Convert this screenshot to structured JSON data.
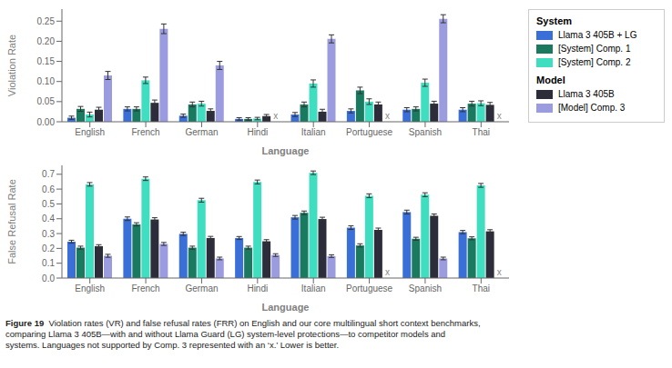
{
  "chart_data": [
    {
      "type": "bar",
      "categories": [
        "English",
        "French",
        "German",
        "Hindi",
        "Italian",
        "Portuguese",
        "Spanish",
        "Thai"
      ],
      "series": [
        {
          "name": "Llama 3 405B + LG",
          "color": "#3A6FD8",
          "values": [
            0.01,
            0.032,
            0.015,
            0.007,
            0.018,
            0.027,
            0.03,
            0.03
          ],
          "errors": [
            0.004,
            0.005,
            0.004,
            0.003,
            0.005,
            0.005,
            0.005,
            0.005
          ]
        },
        {
          "name": "[System] Comp. 1",
          "color": "#1A7A60",
          "values": [
            0.032,
            0.032,
            0.043,
            0.007,
            0.043,
            0.078,
            0.032,
            0.045
          ],
          "errors": [
            0.006,
            0.005,
            0.006,
            0.003,
            0.006,
            0.008,
            0.005,
            0.006
          ]
        },
        {
          "name": "[System] Comp. 2",
          "color": "#40DEC0",
          "values": [
            0.018,
            0.103,
            0.045,
            0.008,
            0.095,
            0.05,
            0.097,
            0.046
          ],
          "errors": [
            0.006,
            0.008,
            0.006,
            0.003,
            0.009,
            0.007,
            0.009,
            0.006
          ]
        },
        {
          "name": "Llama 3 405B",
          "color": "#2C2C3A",
          "values": [
            0.03,
            0.047,
            0.027,
            0.014,
            0.025,
            0.043,
            0.045,
            0.042
          ],
          "errors": [
            0.006,
            0.007,
            0.005,
            0.004,
            0.006,
            0.006,
            0.006,
            0.006
          ]
        },
        {
          "name": "[Model] Comp. 3",
          "color": "#9B9BE0",
          "values": [
            0.115,
            0.231,
            0.14,
            null,
            0.206,
            null,
            0.256,
            null
          ],
          "errors": [
            0.01,
            0.012,
            0.01,
            null,
            0.01,
            null,
            0.01,
            null
          ]
        }
      ],
      "xlabel": "Language",
      "ylabel": "Violation Rate",
      "ylim": [
        0.0,
        0.28
      ],
      "yticks": [
        {
          "value": 0.0,
          "label": "0.00"
        },
        0.05,
        {
          "value": 0.1,
          "label": "0.10"
        },
        0.15,
        {
          "value": 0.2,
          "label": "0.20"
        },
        0.25
      ],
      "grid": false,
      "annotations": [
        {
          "text": "x",
          "category": "Hindi",
          "series": "[Model] Comp. 3"
        },
        {
          "text": "x",
          "category": "Portuguese",
          "series": "[Model] Comp. 3"
        },
        {
          "text": "x",
          "category": "Thai",
          "series": "[Model] Comp. 3"
        }
      ]
    },
    {
      "type": "bar",
      "categories": [
        "English",
        "French",
        "German",
        "Hindi",
        "Italian",
        "Portuguese",
        "Spanish",
        "Thai"
      ],
      "series": [
        {
          "name": "Llama 3 405B + LG",
          "color": "#3A6FD8",
          "values": [
            0.245,
            0.4,
            0.298,
            0.27,
            0.41,
            0.34,
            0.445,
            0.31
          ],
          "errors": [
            0.01,
            0.012,
            0.011,
            0.01,
            0.012,
            0.012,
            0.013,
            0.011
          ]
        },
        {
          "name": "[System] Comp. 1",
          "color": "#1A7A60",
          "values": [
            0.205,
            0.362,
            0.205,
            0.205,
            0.44,
            0.22,
            0.265,
            0.268
          ],
          "errors": [
            0.01,
            0.011,
            0.01,
            0.01,
            0.012,
            0.011,
            0.01,
            0.01
          ]
        },
        {
          "name": "[System] Comp. 2",
          "color": "#40DEC0",
          "values": [
            0.632,
            0.67,
            0.525,
            0.648,
            0.71,
            0.555,
            0.562,
            0.625
          ],
          "errors": [
            0.012,
            0.012,
            0.013,
            0.013,
            0.012,
            0.013,
            0.013,
            0.013
          ]
        },
        {
          "name": "Llama 3 405B",
          "color": "#2C2C3A",
          "values": [
            0.215,
            0.395,
            0.27,
            0.248,
            0.398,
            0.325,
            0.42,
            0.315
          ],
          "errors": [
            0.01,
            0.012,
            0.011,
            0.011,
            0.012,
            0.012,
            0.012,
            0.011
          ]
        },
        {
          "name": "[Model] Comp. 3",
          "color": "#9B9BE0",
          "values": [
            0.15,
            0.23,
            0.132,
            0.155,
            0.148,
            null,
            0.132,
            null
          ],
          "errors": [
            0.01,
            0.01,
            0.009,
            0.009,
            0.009,
            null,
            0.009,
            null
          ]
        }
      ],
      "xlabel": "Language",
      "ylabel": "False Refusal Rate",
      "ylim": [
        0.0,
        0.76
      ],
      "yticks": [
        {
          "value": 0.0,
          "label": "0.0"
        },
        0.1,
        0.2,
        0.3,
        0.4,
        0.5,
        0.6,
        0.7
      ],
      "grid": false,
      "annotations": [
        {
          "text": "x",
          "category": "Portuguese",
          "series": "[Model] Comp. 3"
        },
        {
          "text": "x",
          "category": "Thai",
          "series": "[Model] Comp. 3"
        }
      ]
    }
  ],
  "legend_groups": [
    {
      "title": "System",
      "series": [
        "Llama 3 405B + LG",
        "[System] Comp. 1",
        "[System] Comp. 2"
      ]
    },
    {
      "title": "Model",
      "series": [
        "Llama 3 405B",
        "[Model] Comp. 3"
      ]
    }
  ],
  "caption": {
    "bold": "Figure 19",
    "text": "  Violation rates (VR) and false refusal rates (FRR) on English and our core multilingual short context benchmarks,\ncomparing Llama 3 405B—with and without Llama Guard (LG) system-level protections—to competitor models and\nsystems. Languages not supported by Comp. 3 represented with an ‘x.’ Lower is better."
  }
}
